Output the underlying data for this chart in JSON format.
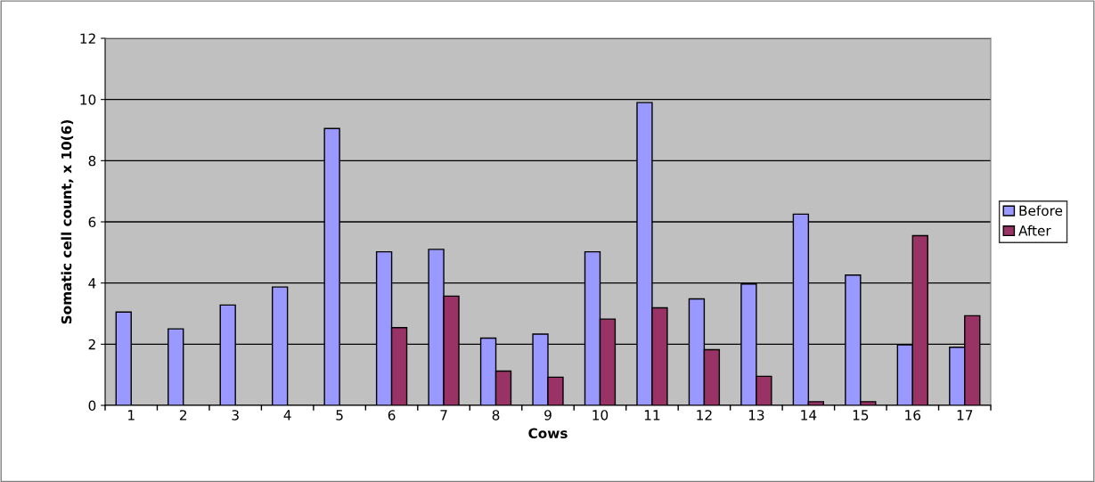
{
  "chart_data": {
    "type": "bar",
    "xlabel": "Cows",
    "ylabel": "Somatic cell count, x 10(6)",
    "categories": [
      "1",
      "2",
      "3",
      "4",
      "5",
      "6",
      "7",
      "8",
      "9",
      "10",
      "11",
      "12",
      "13",
      "14",
      "15",
      "16",
      "17"
    ],
    "series": [
      {
        "name": "Before",
        "color": "#9999ff",
        "values": [
          3.05,
          2.5,
          3.28,
          3.87,
          9.05,
          5.02,
          5.1,
          2.2,
          2.33,
          5.02,
          9.9,
          3.48,
          3.97,
          6.25,
          4.26,
          1.98,
          1.9
        ]
      },
      {
        "name": "After",
        "color": "#993366",
        "values": [
          null,
          null,
          null,
          null,
          null,
          2.54,
          3.57,
          1.12,
          0.92,
          2.82,
          3.19,
          1.82,
          0.95,
          0.12,
          0.12,
          5.55,
          2.93
        ]
      }
    ],
    "ylim": [
      0,
      12
    ],
    "yticks": [
      0,
      2,
      4,
      6,
      8,
      10,
      12
    ],
    "grid": "y",
    "legend": "right"
  }
}
